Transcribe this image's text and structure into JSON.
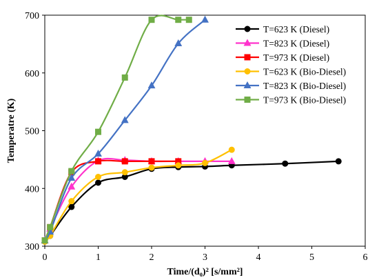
{
  "chart_data": {
    "type": "line",
    "title": "",
    "xlabel": "Time/(d₀)² [s/mm²]",
    "ylabel": "Temperatre (K)",
    "xlim": [
      0,
      6
    ],
    "ylim": [
      300,
      700
    ],
    "xticks": [
      "0",
      "1",
      "2",
      "3",
      "4",
      "5",
      "6"
    ],
    "yticks": [
      "300",
      "400",
      "500",
      "600",
      "700"
    ],
    "grid": false,
    "legend_position": "top-right",
    "series": [
      {
        "name": "T=623 K (Diesel)",
        "color": "#000000",
        "marker": "circle",
        "x": [
          0.0,
          0.1,
          0.5,
          1.0,
          1.5,
          2.0,
          2.5,
          3.0,
          3.5,
          4.5,
          5.5
        ],
        "y": [
          308,
          318,
          368,
          410,
          420,
          434,
          437,
          438,
          440,
          443,
          447
        ]
      },
      {
        "name": "T=823 K (Diesel)",
        "color": "#ff33cc",
        "marker": "triangle",
        "x": [
          0.0,
          0.1,
          0.5,
          1.0,
          1.5,
          2.0,
          2.5,
          3.0,
          3.5
        ],
        "y": [
          310,
          330,
          403,
          448,
          449,
          447,
          447,
          447,
          447
        ]
      },
      {
        "name": "T=973 K (Diesel)",
        "color": "#ff0000",
        "marker": "square",
        "x": [
          0.0,
          0.1,
          0.5,
          1.0,
          1.5,
          2.0,
          2.5
        ],
        "y": [
          310,
          333,
          428,
          447,
          447,
          447,
          447
        ]
      },
      {
        "name": "T=623 K (Bio-Diesel)",
        "color": "#ffc000",
        "marker": "circle",
        "x": [
          0.0,
          0.1,
          0.5,
          1.0,
          1.5,
          2.0,
          2.5,
          3.0,
          3.5
        ],
        "y": [
          308,
          318,
          378,
          420,
          428,
          436,
          440,
          444,
          467
        ]
      },
      {
        "name": "T=823 K (Bio-Diesel)",
        "color": "#4472c4",
        "marker": "triangle",
        "x": [
          0.0,
          0.1,
          0.5,
          1.0,
          1.5,
          2.0,
          2.5,
          3.0
        ],
        "y": [
          310,
          325,
          418,
          460,
          518,
          578,
          651,
          692
        ]
      },
      {
        "name": "T=973 K (Bio-Diesel)",
        "color": "#70ad47",
        "marker": "square",
        "x": [
          0.0,
          0.1,
          0.5,
          1.0,
          1.5,
          2.0,
          2.5,
          2.7
        ],
        "y": [
          310,
          333,
          430,
          498,
          592,
          692,
          692,
          692
        ]
      }
    ]
  }
}
